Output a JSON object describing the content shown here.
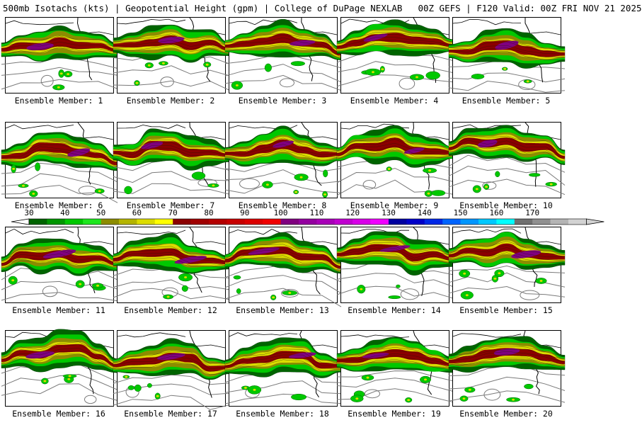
{
  "header": {
    "left": "500mb Isotachs (kts) | Geopotential Height (gpm) | College of DuPage NEXLAB",
    "right": "00Z GEFS | F120 Valid: 00Z FRI NOV 21 2025"
  },
  "legend": {
    "ticks": [
      "30",
      "40",
      "50",
      "60",
      "70",
      "80",
      "90",
      "100",
      "110",
      "120",
      "130",
      "140",
      "150",
      "160",
      "170"
    ],
    "colors": [
      "#006400",
      "#009600",
      "#00c800",
      "#1ee61e",
      "#8c8c00",
      "#b4b400",
      "#dcdc00",
      "#ffff00",
      "#8b0000",
      "#a00000",
      "#b40000",
      "#c80000",
      "#dc0000",
      "#f00000",
      "#800080",
      "#9400a0",
      "#a800b8",
      "#c000d0",
      "#d800e8",
      "#f000ff",
      "#0000a0",
      "#0000c8",
      "#0028e6",
      "#0064ff",
      "#0096ff",
      "#00c8ff",
      "#00ffff",
      "#707070",
      "#909090",
      "#b4b4b4",
      "#d2d2d2"
    ]
  },
  "map_colors": {
    "land_outline": "#000000",
    "height_contour": "#7a7a7a",
    "jet_green_dark": "#006400",
    "jet_green": "#00c800",
    "jet_yellow": "#dcdc00",
    "jet_olive": "#8c8c00",
    "jet_red": "#8b0000",
    "jet_purple": "#800080"
  },
  "panels": [
    {
      "label": "Ensemble Member: 1"
    },
    {
      "label": "Ensemble Member: 2"
    },
    {
      "label": "Ensemble Member: 3"
    },
    {
      "label": "Ensemble Member: 4"
    },
    {
      "label": "Ensemble Member: 5"
    },
    {
      "label": "Ensemble Member: 6"
    },
    {
      "label": "Ensemble Member: 7"
    },
    {
      "label": "Ensemble Member: 8"
    },
    {
      "label": "Ensemble Member: 9"
    },
    {
      "label": "Ensemble Member: 10"
    },
    {
      "label": "Ensemble Member: 11"
    },
    {
      "label": "Ensemble Member: 12"
    },
    {
      "label": "Ensemble Member: 13"
    },
    {
      "label": "Ensemble Member: 14"
    },
    {
      "label": "Ensemble Member: 15"
    },
    {
      "label": "Ensemble Member: 16"
    },
    {
      "label": "Ensemble Member: 17"
    },
    {
      "label": "Ensemble Member: 18"
    },
    {
      "label": "Ensemble Member: 19"
    },
    {
      "label": "Ensemble Member: 20"
    }
  ]
}
